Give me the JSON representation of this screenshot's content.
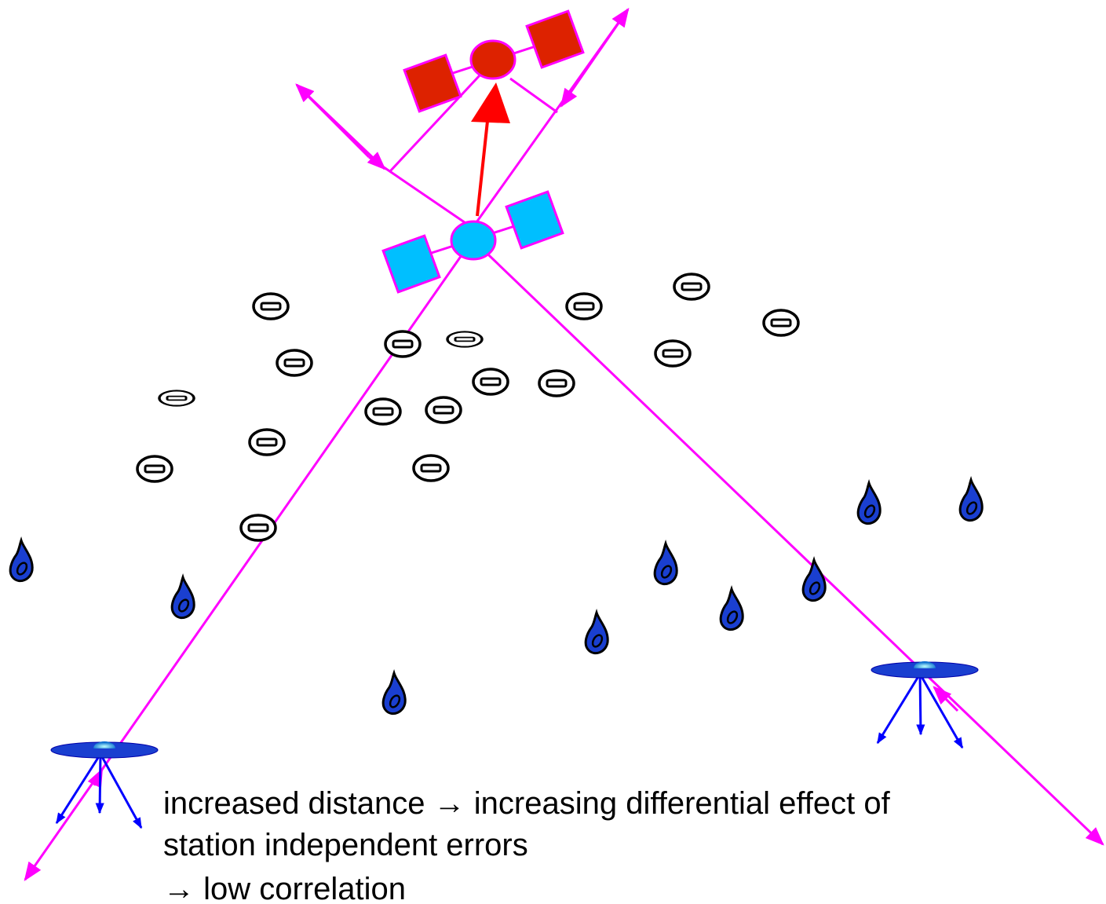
{
  "caption": {
    "lines": [
      "increased distance → increasing differential effect of",
      "station independent errors",
      "→ low correlation"
    ]
  }
}
